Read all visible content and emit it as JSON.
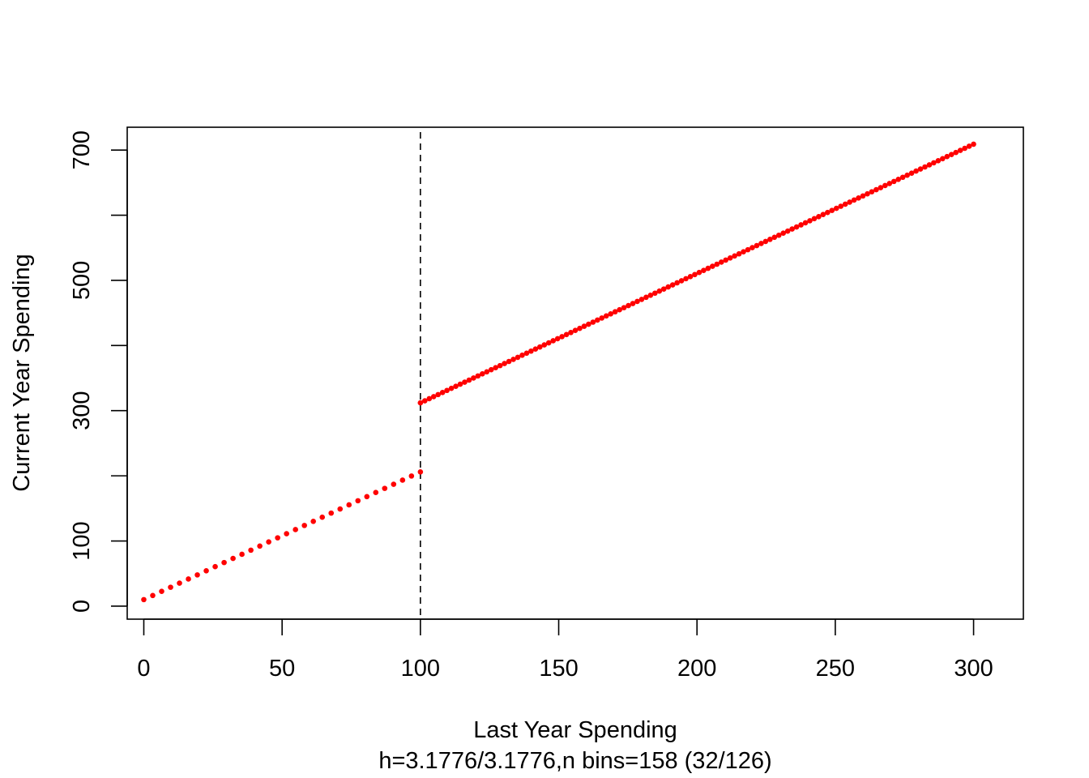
{
  "chart_data": {
    "type": "scatter",
    "title": "",
    "xlabel": "Last Year Spending",
    "ylabel": "Current Year Spending",
    "subtitle": "h=3.1776/3.1776,n bins=158 (32/126)",
    "xlim": [
      -6,
      318
    ],
    "ylim": [
      -20,
      735
    ],
    "x_ticks": [
      0,
      50,
      100,
      150,
      200,
      250,
      300
    ],
    "x_tick_labels": [
      "0",
      "50",
      "100",
      "150",
      "200",
      "250",
      "300"
    ],
    "y_ticks": [
      0,
      100,
      200,
      300,
      400,
      500,
      600,
      700
    ],
    "y_tick_labels": [
      "0",
      "100",
      "",
      "300",
      "",
      "500",
      "",
      "700"
    ],
    "cutoff": 100,
    "grid": false,
    "legend": "none",
    "series": [
      {
        "color": "#ff0000",
        "segments": [
          {
            "x_start": 0,
            "x_end": 100,
            "y_start": 10,
            "y_end": 206,
            "n_points": 32
          },
          {
            "x_start": 100,
            "x_end": 300,
            "y_start": 312,
            "y_end": 709,
            "n_points": 126
          }
        ]
      }
    ]
  }
}
